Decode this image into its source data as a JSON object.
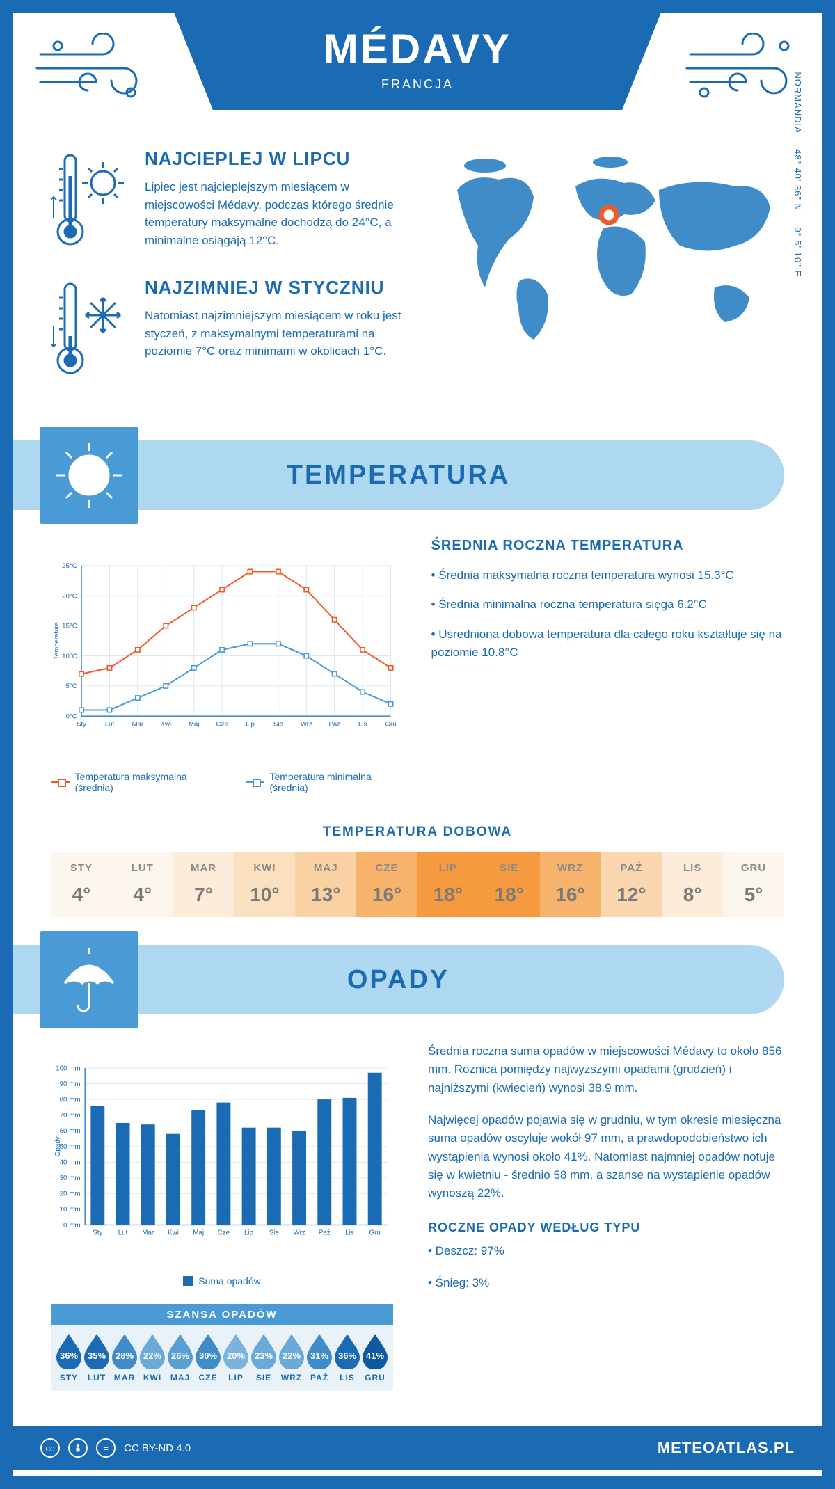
{
  "header": {
    "title": "MÉDAVY",
    "subtitle": "FRANCJA"
  },
  "intro": {
    "warm": {
      "title": "NAJCIEPLEJ W LIPCU",
      "text": "Lipiec jest najcieplejszym miesiącem w miejscowości Médavy, podczas którego średnie temperatury maksymalne dochodzą do 24°C, a minimalne osiągają 12°C."
    },
    "cold": {
      "title": "NAJZIMNIEJ W STYCZNIU",
      "text": "Natomiast najzimniejszym miesiącem w roku jest styczeń, z maksymalnymi temperaturami na poziomie 7°C oraz minimami w okolicach 1°C."
    },
    "coords": "48° 40' 36\" N — 0° 5' 10\" E",
    "region": "NORMANDIA"
  },
  "sections": {
    "temperature": "TEMPERATURA",
    "precipitation": "OPADY"
  },
  "temp_chart": {
    "type": "line",
    "months": [
      "Sty",
      "Lut",
      "Mar",
      "Kwi",
      "Maj",
      "Cze",
      "Lip",
      "Sie",
      "Wrz",
      "Paź",
      "Lis",
      "Gru"
    ],
    "max": [
      7,
      8,
      11,
      15,
      18,
      21,
      24,
      24,
      21,
      16,
      11,
      8
    ],
    "min": [
      1,
      1,
      3,
      5,
      8,
      11,
      12,
      12,
      10,
      7,
      4,
      2
    ],
    "max_color": "#f05a28",
    "min_color": "#4a9ad5",
    "grid_color": "#cfe3f2",
    "axis_color": "#1a6bb3",
    "ylabel": "Temperatura",
    "ylim": [
      0,
      25
    ],
    "ytick_step": 5,
    "legend_max": "Temperatura maksymalna (średnia)",
    "legend_min": "Temperatura minimalna (średnia)"
  },
  "temp_side": {
    "title": "ŚREDNIA ROCZNA TEMPERATURA",
    "lines": [
      "• Średnia maksymalna roczna temperatura wynosi 15.3°C",
      "• Średnia minimalna roczna temperatura sięga 6.2°C",
      "• Uśredniona dobowa temperatura dla całego roku kształtuje się na poziomie 10.8°C"
    ]
  },
  "daily": {
    "title": "TEMPERATURA DOBOWA",
    "months": [
      "STY",
      "LUT",
      "MAR",
      "KWI",
      "MAJ",
      "CZE",
      "LIP",
      "SIE",
      "WRZ",
      "PAŹ",
      "LIS",
      "GRU"
    ],
    "values": [
      "4°",
      "4°",
      "7°",
      "10°",
      "13°",
      "16°",
      "18°",
      "18°",
      "16°",
      "12°",
      "8°",
      "5°"
    ],
    "colors": [
      "#fdf6ee",
      "#fdf6ee",
      "#fdecd9",
      "#fbe0c0",
      "#f9d1a3",
      "#f7b36c",
      "#f59a3e",
      "#f59a3e",
      "#f7b36c",
      "#fad7af",
      "#fdecd9",
      "#fdf6ee"
    ]
  },
  "precip_chart": {
    "type": "bar",
    "months": [
      "Sty",
      "Lut",
      "Mar",
      "Kwi",
      "Maj",
      "Cze",
      "Lip",
      "Sie",
      "Wrz",
      "Paź",
      "Lis",
      "Gru"
    ],
    "values": [
      76,
      65,
      64,
      58,
      73,
      78,
      62,
      62,
      60,
      80,
      81,
      97
    ],
    "bar_color": "#1a6bb3",
    "grid_color": "#d8e7f4",
    "axis_color": "#1a6bb3",
    "ylabel": "Opady",
    "ylim": [
      0,
      100
    ],
    "ytick_step": 10,
    "legend": "Suma opadów"
  },
  "precip_side": {
    "para1": "Średnia roczna suma opadów w miejscowości Médavy to około 856 mm. Różnica pomiędzy najwyższymi opadami (grudzień) i najniższymi (kwiecień) wynosi 38.9 mm.",
    "para2": "Najwięcej opadów pojawia się w grudniu, w tym okresie miesięczna suma opadów oscyluje wokół 97 mm, a prawdopodobieństwo ich wystąpienia wynosi około 41%. Natomiast najmniej opadów notuje się w kwietniu - średnio 58 mm, a szanse na wystąpienie opadów wynoszą 22%.",
    "type_title": "ROCZNE OPADY WEDŁUG TYPU",
    "type_rain": "• Deszcz: 97%",
    "type_snow": "• Śnieg: 3%"
  },
  "chance": {
    "title": "SZANSA OPADÓW",
    "months": [
      "STY",
      "LUT",
      "MAR",
      "KWI",
      "MAJ",
      "CZE",
      "LIP",
      "SIE",
      "WRZ",
      "PAŹ",
      "LIS",
      "GRU"
    ],
    "values": [
      "36%",
      "35%",
      "28%",
      "22%",
      "26%",
      "30%",
      "20%",
      "23%",
      "22%",
      "31%",
      "36%",
      "41%"
    ],
    "colors": [
      "#1a6bb3",
      "#1a6bb3",
      "#3f8cc9",
      "#6aa9d8",
      "#5a9fd2",
      "#3f8cc9",
      "#7cb3dc",
      "#6aa9d8",
      "#6aa9d8",
      "#3f8cc9",
      "#1a6bb3",
      "#0f5a9e"
    ]
  },
  "footer": {
    "license": "CC BY-ND 4.0",
    "site": "METEOATLAS.PL"
  },
  "colors": {
    "primary": "#1a6bb3",
    "light": "#add8f0",
    "mid": "#4a9ad5"
  }
}
